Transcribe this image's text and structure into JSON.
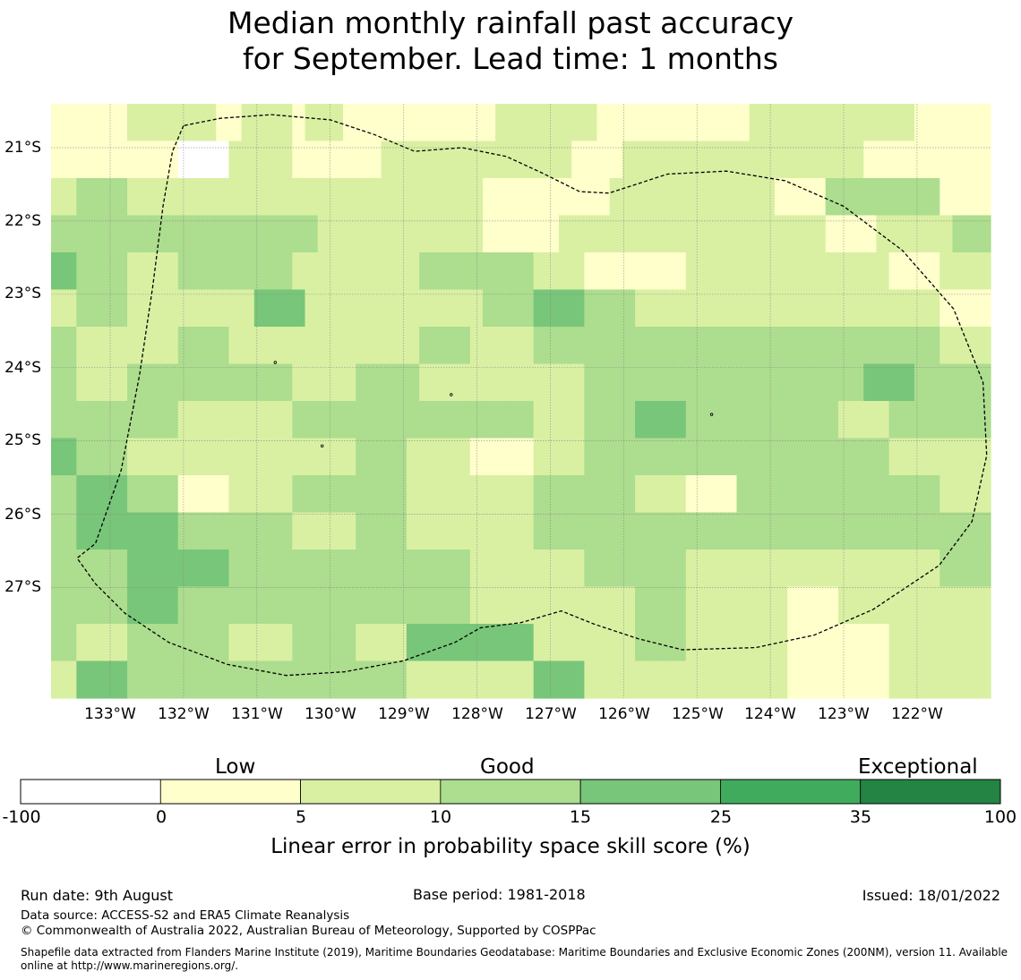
{
  "title": {
    "line1": "Median monthly rainfall past accuracy",
    "line2": "for September. Lead time: 1 months"
  },
  "map": {
    "lat_labels": [
      "21°S",
      "22°S",
      "23°S",
      "24°S",
      "25°S",
      "26°S",
      "27°S"
    ],
    "lon_labels": [
      "133°W",
      "132°W",
      "131°W",
      "130°W",
      "129°W",
      "128°W",
      "127°W",
      "126°W",
      "125°W",
      "124°W",
      "123°W",
      "122°W"
    ],
    "skill_grid": [
      [
        1,
        1,
        1,
        1,
        1,
        1,
        2,
        2,
        2,
        2,
        2,
        2,
        2,
        1,
        1,
        2,
        2,
        2,
        2,
        1,
        2,
        2,
        2,
        1,
        1,
        1,
        1,
        1,
        1,
        1,
        1,
        1,
        1,
        1,
        1,
        2,
        2,
        2,
        2,
        2,
        2,
        2,
        2,
        1,
        1,
        1,
        1,
        1,
        1,
        1,
        1,
        1,
        1,
        1,
        1,
        2,
        2,
        2,
        2,
        2,
        2,
        2,
        2,
        2,
        2,
        2,
        2,
        2,
        1,
        1,
        1,
        1,
        1,
        1
      ],
      [
        1,
        1,
        1,
        1,
        1,
        1,
        1,
        1,
        1,
        1,
        0,
        0,
        0,
        0,
        2,
        2,
        2,
        2,
        2,
        1,
        1,
        1,
        1,
        1,
        1,
        1,
        2,
        2,
        2,
        2,
        2,
        2,
        2,
        2,
        2,
        2,
        2,
        2,
        2,
        2,
        2,
        1,
        1,
        1,
        1,
        2,
        2,
        2,
        2,
        2,
        2,
        2,
        2,
        2,
        2,
        2,
        2,
        2,
        2,
        2,
        2,
        2,
        2,
        2,
        1,
        1,
        1,
        1,
        1,
        1,
        1,
        1,
        1,
        1
      ],
      [
        2,
        2,
        3,
        3,
        3,
        3,
        2,
        2,
        2,
        2,
        2,
        2,
        2,
        2,
        2,
        2,
        2,
        2,
        2,
        2,
        2,
        2,
        2,
        2,
        2,
        2,
        2,
        2,
        2,
        2,
        2,
        2,
        2,
        2,
        1,
        1,
        1,
        1,
        1,
        1,
        1,
        1,
        1,
        1,
        2,
        2,
        2,
        2,
        2,
        2,
        2,
        2,
        2,
        2,
        2,
        2,
        2,
        1,
        1,
        1,
        1,
        3,
        3,
        3,
        3,
        3,
        3,
        3,
        3,
        3,
        1,
        1,
        1,
        1
      ],
      [
        3,
        3,
        3,
        3,
        3,
        3,
        3,
        3,
        3,
        3,
        3,
        3,
        3,
        3,
        3,
        3,
        3,
        3,
        3,
        3,
        3,
        2,
        2,
        2,
        2,
        2,
        2,
        2,
        2,
        2,
        2,
        2,
        2,
        2,
        1,
        1,
        1,
        1,
        1,
        1,
        2,
        2,
        2,
        2,
        2,
        2,
        2,
        2,
        2,
        2,
        2,
        2,
        2,
        2,
        2,
        2,
        2,
        2,
        2,
        2,
        2,
        1,
        1,
        1,
        1,
        2,
        2,
        2,
        2,
        2,
        2,
        3,
        3,
        3
      ],
      [
        4,
        4,
        3,
        3,
        3,
        3,
        2,
        2,
        2,
        2,
        3,
        3,
        3,
        3,
        3,
        3,
        3,
        3,
        3,
        2,
        2,
        2,
        2,
        2,
        2,
        2,
        2,
        2,
        2,
        3,
        3,
        3,
        3,
        3,
        3,
        3,
        3,
        3,
        2,
        2,
        2,
        2,
        1,
        1,
        1,
        1,
        1,
        1,
        1,
        1,
        2,
        2,
        2,
        2,
        2,
        2,
        2,
        2,
        2,
        2,
        2,
        2,
        2,
        2,
        2,
        2,
        1,
        1,
        1,
        1,
        2,
        2,
        2,
        2
      ],
      [
        2,
        2,
        3,
        3,
        3,
        3,
        2,
        2,
        2,
        2,
        2,
        2,
        2,
        2,
        2,
        2,
        4,
        4,
        4,
        4,
        2,
        2,
        2,
        2,
        2,
        2,
        2,
        2,
        2,
        2,
        2,
        2,
        2,
        2,
        3,
        3,
        3,
        3,
        4,
        4,
        4,
        4,
        3,
        3,
        3,
        3,
        2,
        2,
        2,
        2,
        2,
        2,
        2,
        2,
        2,
        2,
        2,
        2,
        2,
        2,
        2,
        2,
        2,
        2,
        2,
        2,
        2,
        2,
        2,
        2,
        1,
        1,
        1,
        1
      ],
      [
        3,
        3,
        2,
        2,
        2,
        2,
        2,
        2,
        2,
        2,
        3,
        3,
        3,
        3,
        2,
        2,
        2,
        2,
        2,
        2,
        2,
        2,
        2,
        2,
        2,
        2,
        2,
        2,
        2,
        3,
        3,
        3,
        3,
        2,
        2,
        2,
        2,
        2,
        3,
        3,
        3,
        3,
        3,
        3,
        3,
        3,
        3,
        3,
        3,
        3,
        3,
        3,
        3,
        3,
        3,
        3,
        3,
        3,
        3,
        3,
        3,
        3,
        3,
        3,
        3,
        3,
        3,
        3,
        3,
        3,
        2,
        2,
        2,
        2
      ],
      [
        3,
        3,
        2,
        2,
        2,
        2,
        3,
        3,
        3,
        3,
        3,
        3,
        3,
        3,
        3,
        3,
        3,
        3,
        3,
        2,
        2,
        2,
        2,
        2,
        3,
        3,
        3,
        3,
        3,
        2,
        2,
        2,
        2,
        2,
        2,
        2,
        2,
        2,
        2,
        2,
        2,
        2,
        3,
        3,
        3,
        3,
        3,
        3,
        3,
        3,
        3,
        3,
        3,
        3,
        3,
        3,
        3,
        3,
        3,
        3,
        3,
        3,
        3,
        3,
        4,
        4,
        4,
        4,
        3,
        3,
        3,
        3,
        3,
        3
      ],
      [
        3,
        3,
        3,
        3,
        3,
        3,
        3,
        3,
        3,
        3,
        2,
        2,
        2,
        2,
        2,
        2,
        2,
        2,
        2,
        3,
        3,
        3,
        3,
        3,
        3,
        3,
        3,
        3,
        3,
        3,
        3,
        3,
        3,
        3,
        3,
        3,
        3,
        3,
        2,
        2,
        2,
        2,
        3,
        3,
        3,
        3,
        4,
        4,
        4,
        4,
        3,
        3,
        3,
        3,
        3,
        3,
        3,
        3,
        3,
        3,
        3,
        3,
        2,
        2,
        2,
        2,
        3,
        3,
        3,
        3,
        3,
        3,
        3,
        3
      ],
      [
        4,
        4,
        3,
        3,
        3,
        3,
        2,
        2,
        2,
        2,
        2,
        2,
        2,
        2,
        2,
        2,
        2,
        2,
        2,
        2,
        2,
        2,
        2,
        2,
        3,
        3,
        3,
        3,
        2,
        2,
        2,
        2,
        2,
        1,
        1,
        1,
        1,
        1,
        2,
        2,
        2,
        2,
        3,
        3,
        3,
        3,
        3,
        3,
        3,
        3,
        3,
        3,
        3,
        3,
        3,
        3,
        3,
        3,
        3,
        3,
        3,
        3,
        3,
        3,
        3,
        3,
        2,
        2,
        2,
        2,
        2,
        2,
        2,
        2
      ],
      [
        3,
        3,
        4,
        4,
        4,
        4,
        3,
        3,
        3,
        3,
        1,
        1,
        1,
        1,
        2,
        2,
        2,
        2,
        2,
        3,
        3,
        3,
        3,
        3,
        3,
        3,
        3,
        3,
        2,
        2,
        2,
        2,
        2,
        2,
        2,
        2,
        2,
        2,
        3,
        3,
        3,
        3,
        3,
        3,
        3,
        3,
        2,
        2,
        2,
        2,
        1,
        1,
        1,
        1,
        3,
        3,
        3,
        3,
        3,
        3,
        3,
        3,
        3,
        3,
        3,
        3,
        3,
        3,
        3,
        3,
        2,
        2,
        2,
        2
      ],
      [
        3,
        3,
        4,
        4,
        4,
        4,
        4,
        4,
        4,
        4,
        3,
        3,
        3,
        3,
        3,
        3,
        3,
        3,
        3,
        2,
        2,
        2,
        2,
        2,
        3,
        3,
        3,
        3,
        2,
        2,
        2,
        2,
        2,
        2,
        2,
        2,
        2,
        2,
        3,
        3,
        3,
        3,
        3,
        3,
        3,
        3,
        3,
        3,
        3,
        3,
        3,
        3,
        3,
        3,
        3,
        3,
        3,
        3,
        3,
        3,
        3,
        3,
        3,
        3,
        3,
        3,
        3,
        3,
        3,
        3,
        3,
        3,
        3,
        3
      ],
      [
        3,
        3,
        3,
        3,
        3,
        3,
        4,
        4,
        4,
        4,
        4,
        4,
        4,
        4,
        3,
        3,
        3,
        3,
        3,
        3,
        3,
        3,
        3,
        3,
        3,
        3,
        3,
        3,
        3,
        3,
        3,
        3,
        3,
        2,
        2,
        2,
        2,
        2,
        2,
        2,
        2,
        2,
        3,
        3,
        3,
        3,
        3,
        3,
        3,
        3,
        2,
        2,
        2,
        2,
        2,
        2,
        2,
        2,
        2,
        2,
        2,
        2,
        2,
        2,
        2,
        2,
        2,
        2,
        2,
        2,
        3,
        3,
        3,
        3
      ],
      [
        3,
        3,
        3,
        3,
        3,
        3,
        4,
        4,
        4,
        4,
        3,
        3,
        3,
        3,
        3,
        3,
        3,
        3,
        3,
        3,
        3,
        3,
        3,
        3,
        3,
        3,
        3,
        3,
        3,
        3,
        3,
        3,
        3,
        2,
        2,
        2,
        2,
        2,
        2,
        2,
        2,
        2,
        2,
        2,
        2,
        2,
        3,
        3,
        3,
        3,
        2,
        2,
        2,
        2,
        2,
        2,
        2,
        2,
        1,
        1,
        1,
        1,
        2,
        2,
        2,
        2,
        2,
        2,
        2,
        2,
        2,
        2,
        2,
        2
      ],
      [
        3,
        3,
        2,
        2,
        2,
        2,
        3,
        3,
        3,
        3,
        3,
        3,
        3,
        3,
        2,
        2,
        2,
        2,
        2,
        3,
        3,
        3,
        3,
        3,
        2,
        2,
        2,
        2,
        4,
        4,
        4,
        4,
        4,
        4,
        4,
        4,
        4,
        4,
        2,
        2,
        2,
        2,
        2,
        2,
        2,
        2,
        3,
        3,
        3,
        3,
        2,
        2,
        2,
        2,
        2,
        2,
        2,
        2,
        1,
        1,
        1,
        1,
        1,
        1,
        1,
        1,
        2,
        2,
        2,
        2,
        2,
        2,
        2,
        2
      ],
      [
        2,
        2,
        4,
        4,
        4,
        4,
        3,
        3,
        3,
        3,
        3,
        3,
        3,
        3,
        3,
        3,
        3,
        3,
        3,
        3,
        3,
        3,
        3,
        3,
        3,
        3,
        3,
        3,
        2,
        2,
        2,
        2,
        2,
        2,
        2,
        2,
        2,
        2,
        4,
        4,
        4,
        4,
        2,
        2,
        2,
        2,
        2,
        2,
        2,
        2,
        2,
        2,
        2,
        2,
        2,
        2,
        2,
        2,
        1,
        1,
        1,
        1,
        1,
        1,
        1,
        1,
        2,
        2,
        2,
        2,
        2,
        2,
        2,
        2
      ]
    ],
    "boundary_lonlat": [
      [
        -132.0,
        -20.7
      ],
      [
        -132.15,
        -21.05
      ],
      [
        -132.28,
        -21.8
      ],
      [
        -132.42,
        -22.9
      ],
      [
        -132.6,
        -24.1
      ],
      [
        -132.85,
        -25.4
      ],
      [
        -133.2,
        -26.4
      ],
      [
        -133.45,
        -26.6
      ],
      [
        -133.2,
        -26.95
      ],
      [
        -132.8,
        -27.35
      ],
      [
        -132.2,
        -27.75
      ],
      [
        -131.4,
        -28.05
      ],
      [
        -130.6,
        -28.2
      ],
      [
        -129.8,
        -28.15
      ],
      [
        -129.0,
        -28.0
      ],
      [
        -128.3,
        -27.75
      ],
      [
        -127.95,
        -27.55
      ],
      [
        -127.4,
        -27.48
      ],
      [
        -126.85,
        -27.32
      ],
      [
        -126.4,
        -27.5
      ],
      [
        -125.8,
        -27.7
      ],
      [
        -125.2,
        -27.85
      ],
      [
        -124.2,
        -27.82
      ],
      [
        -123.4,
        -27.65
      ],
      [
        -122.6,
        -27.3
      ],
      [
        -121.7,
        -26.7
      ],
      [
        -121.25,
        -26.1
      ],
      [
        -121.05,
        -25.2
      ],
      [
        -121.1,
        -24.2
      ],
      [
        -121.5,
        -23.2
      ],
      [
        -122.2,
        -22.4
      ],
      [
        -123.0,
        -21.8
      ],
      [
        -123.8,
        -21.45
      ],
      [
        -124.6,
        -21.32
      ],
      [
        -125.4,
        -21.36
      ],
      [
        -126.2,
        -21.62
      ],
      [
        -126.6,
        -21.6
      ],
      [
        -127.1,
        -21.35
      ],
      [
        -127.6,
        -21.12
      ],
      [
        -128.2,
        -21.0
      ],
      [
        -128.85,
        -21.05
      ],
      [
        -129.4,
        -20.82
      ],
      [
        -130.0,
        -20.62
      ],
      [
        -130.8,
        -20.55
      ],
      [
        -131.5,
        -20.6
      ],
      [
        -132.0,
        -20.7
      ]
    ],
    "islands_lonlat": [
      [
        -130.75,
        -23.93
      ],
      [
        -128.35,
        -24.37
      ],
      [
        -130.11,
        -25.07
      ],
      [
        -124.8,
        -24.64
      ]
    ],
    "grid_line_color": "#888888",
    "boundary_color": "#000000"
  },
  "colorbar": {
    "category_labels": [
      "Low",
      "Good",
      "Exceptional"
    ],
    "tick_labels": [
      "-100",
      "0",
      "5",
      "10",
      "15",
      "25",
      "35",
      "100"
    ],
    "colors": [
      "#ffffff",
      "#ffffcc",
      "#d9f0a3",
      "#addd8e",
      "#78c679",
      "#41ab5d",
      "#238443"
    ],
    "title": "Linear error in probability space skill score (%)"
  },
  "footer": {
    "run_date": "Run date: 9th August",
    "base_period": "Base period: 1981-2018",
    "issued": "Issued: 18/01/2022",
    "data_source": "Data source: ACCESS-S2 and ERA5 Climate Reanalysis",
    "copyright": "© Commonwealth of Australia 2022, Australian Bureau of Meteorology, Supported by COSPPac",
    "shapefile": "Shapefile data extracted from Flanders Marine Institute (2019), Maritime Boundaries Geodatabase: Maritime Boundaries and Exclusive Economic Zones (200NM), version 11. Available online at http://www.marineregions.org/."
  }
}
